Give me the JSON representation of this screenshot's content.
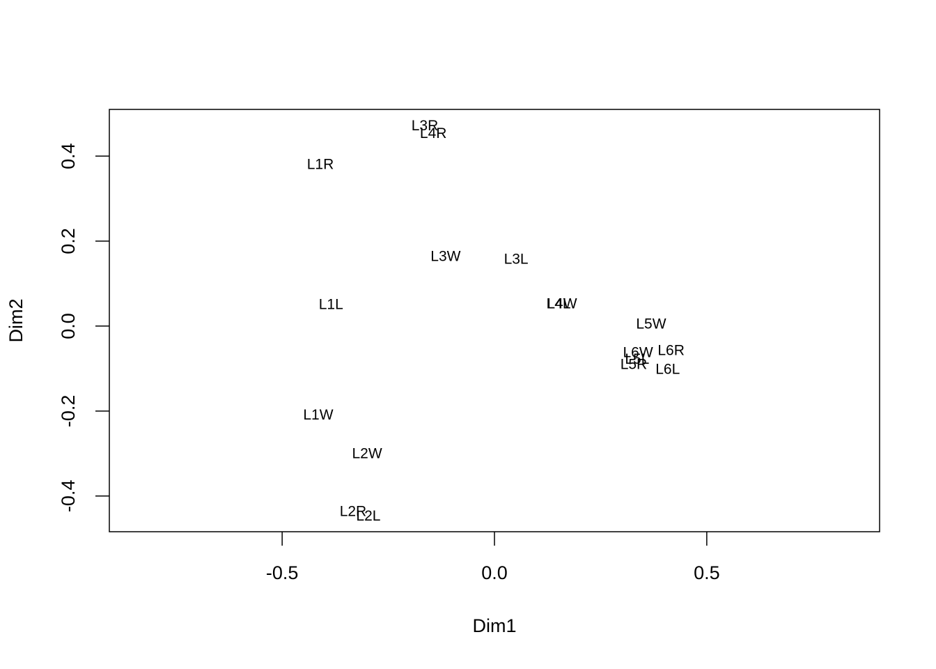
{
  "chart_data": {
    "type": "scatter",
    "x_label": "Dim1",
    "y_label": "Dim2",
    "labels": [
      "L3R",
      "L4R",
      "L1R",
      "L3W",
      "L3L",
      "L1L",
      "L4L",
      "L4W",
      "L5W",
      "L6W",
      "L6R",
      "L5L",
      "L5R",
      "L6L",
      "L1W",
      "L2W",
      "L2R",
      "L2L"
    ],
    "x": [
      -0.164,
      -0.144,
      -0.41,
      -0.115,
      0.051,
      -0.385,
      0.151,
      0.159,
      0.369,
      0.338,
      0.416,
      0.336,
      0.328,
      0.408,
      -0.415,
      -0.3,
      -0.333,
      -0.297
    ],
    "values": [
      0.47,
      0.452,
      0.379,
      0.162,
      0.156,
      0.049,
      0.051,
      0.051,
      0.003,
      -0.064,
      -0.059,
      -0.08,
      -0.092,
      -0.103,
      -0.211,
      -0.302,
      -0.438,
      -0.449
    ],
    "color": "#000000",
    "xlim": [
      -0.907,
      0.907
    ],
    "ylim": [
      -0.484,
      0.51
    ],
    "xticks": [
      -0.5,
      {
        "value": 0,
        "label": "0.0"
      },
      0.5
    ],
    "yticks": [
      -0.4,
      -0.2,
      {
        "value": 0,
        "label": "0.0"
      },
      0.2,
      0.4
    ],
    "grid": false
  }
}
